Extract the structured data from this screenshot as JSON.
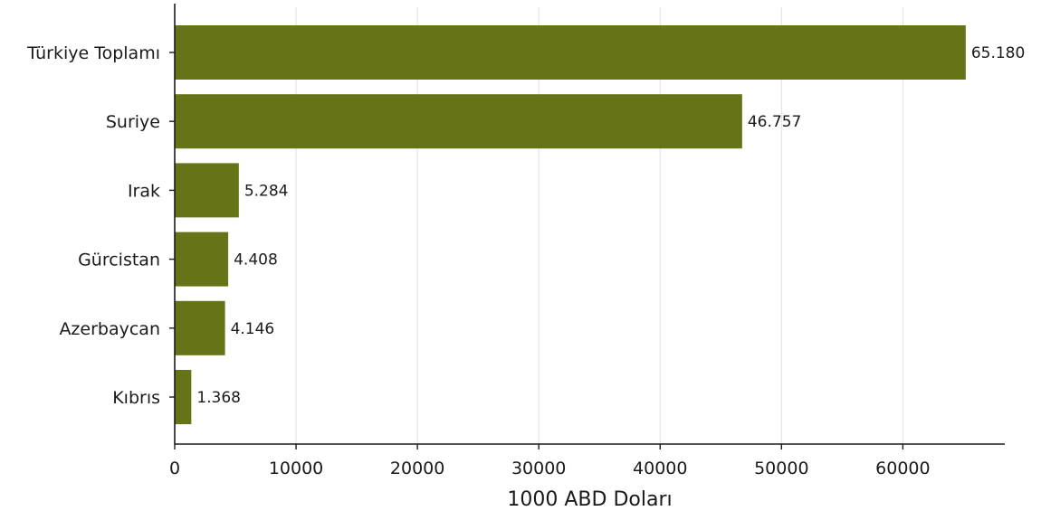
{
  "chart_data": {
    "type": "bar",
    "orientation": "horizontal",
    "categories": [
      "Türkiye Toplamı",
      "Suriye",
      "Irak",
      "Gürcistan",
      "Azerbaycan",
      "Kıbrıs"
    ],
    "values": [
      65180,
      46757,
      5284,
      4408,
      4146,
      1368
    ],
    "value_labels": [
      "65.180",
      "46.757",
      "5.284",
      "4.408",
      "4.146",
      "1.368"
    ],
    "title": "",
    "xlabel": "1000 ABD Doları",
    "ylabel": "",
    "xlim": [
      0,
      68400
    ],
    "xticks": [
      0,
      10000,
      20000,
      30000,
      40000,
      50000,
      60000
    ],
    "xtick_labels": [
      "0",
      "10000",
      "20000",
      "30000",
      "40000",
      "50000",
      "60000"
    ],
    "grid": "vertical",
    "bar_color": "#667316"
  }
}
